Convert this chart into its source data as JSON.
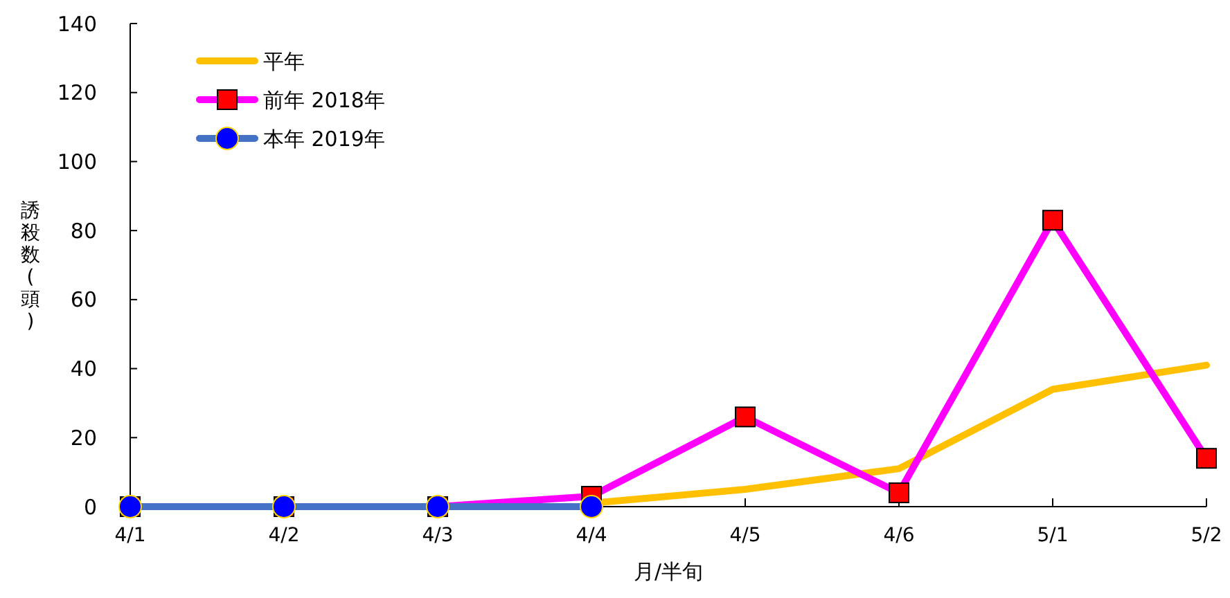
{
  "chart_data": {
    "type": "line",
    "xlabel": "月/半旬",
    "ylabel": "誘殺数(頭)",
    "categories": [
      "4/1",
      "4/2",
      "4/3",
      "4/4",
      "4/5",
      "4/6",
      "5/1",
      "5/2"
    ],
    "ylim": [
      0,
      140
    ],
    "yticks": [
      0,
      20,
      40,
      60,
      80,
      100,
      120,
      140
    ],
    "grid": false,
    "legend": "top left",
    "series": [
      {
        "name": "平年",
        "color": "#ffc000",
        "marker": "none",
        "values": [
          null,
          null,
          null,
          1,
          5,
          11,
          34,
          41
        ]
      },
      {
        "name": "前年 2018年",
        "color": "#ff00ff",
        "marker": "square",
        "colors": [
          "#ff0000",
          "#ff0000",
          "#ff0000",
          "#ff0000",
          "#ff0000",
          "#ff0000",
          "#ff0000",
          "#ff0000"
        ],
        "values": [
          0,
          0,
          0,
          3,
          26,
          4,
          83,
          14
        ]
      },
      {
        "name": "本年 2019年",
        "color": "#4472c4",
        "marker": "circle",
        "colors": [
          "#0000ff",
          "#0000ff",
          "#0000ff",
          "#0000ff",
          null,
          null,
          null,
          null
        ],
        "values": [
          0,
          0,
          0,
          0,
          null,
          null,
          null,
          null
        ]
      }
    ]
  }
}
